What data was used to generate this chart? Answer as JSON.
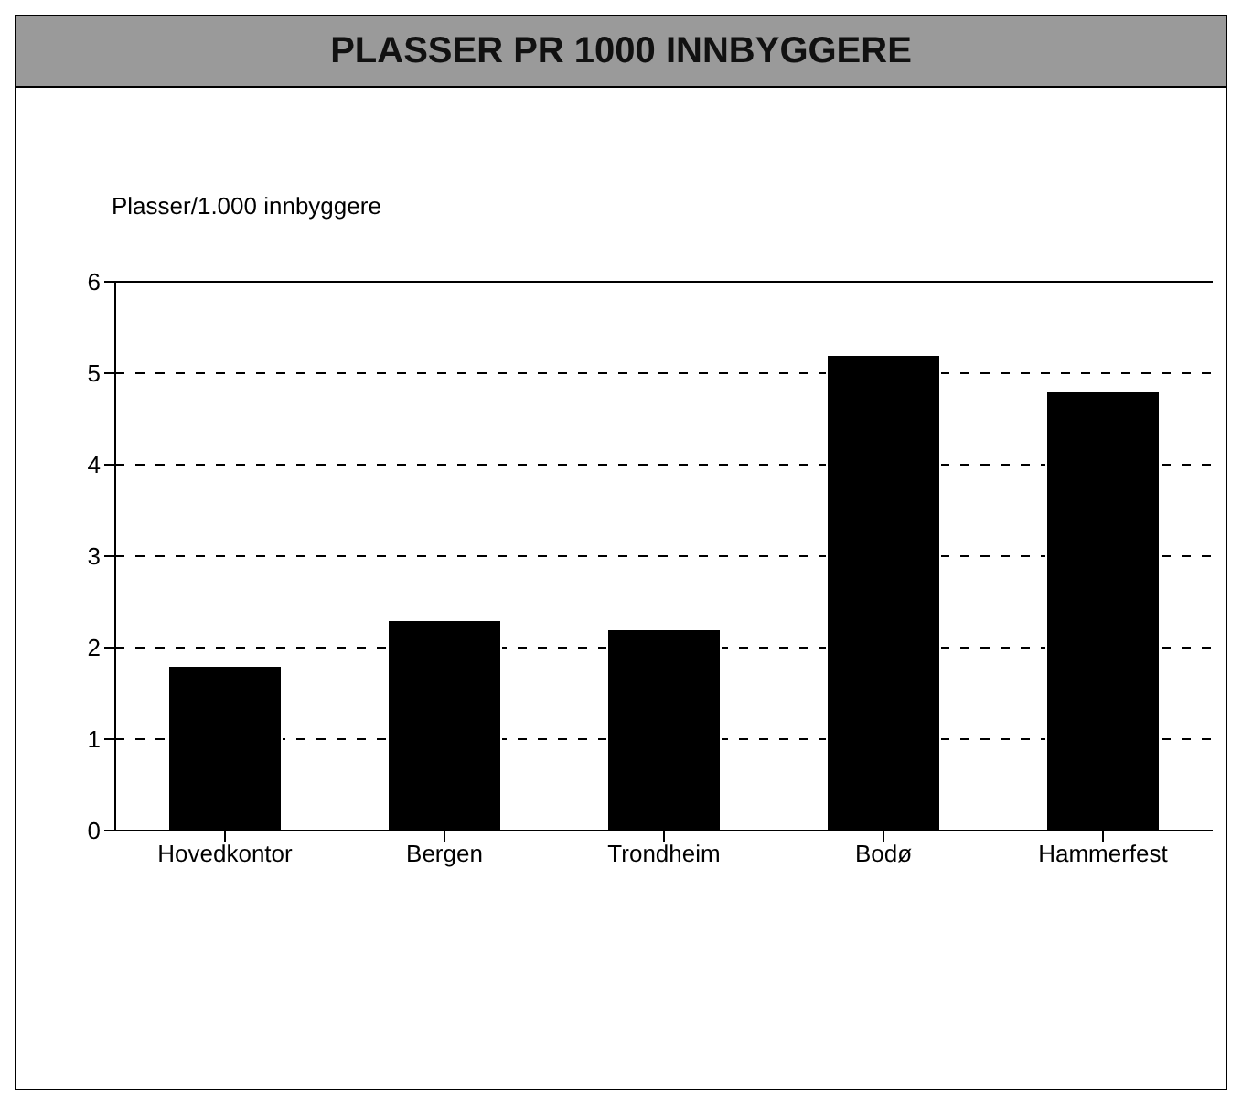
{
  "chart_data": {
    "type": "bar",
    "title": "PLASSER PR 1000 INNBYGGERE",
    "ylabel": "Plasser/1.000 innbyggere",
    "categories": [
      "Hovedkontor",
      "Bergen",
      "Trondheim",
      "Bodø",
      "Hammerfest"
    ],
    "values": [
      1.8,
      2.3,
      2.2,
      5.2,
      4.8
    ],
    "color": "#000000",
    "ylim": [
      0,
      6
    ],
    "yticks": [
      0,
      1,
      2,
      3,
      4,
      5,
      6
    ],
    "grid": "y"
  }
}
